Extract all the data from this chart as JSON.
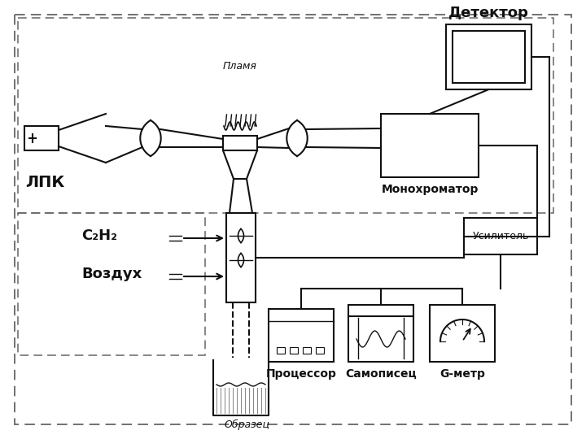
{
  "bg_color": "#ffffff",
  "dc": "#666666",
  "cc": "#111111",
  "labels": {
    "lpk": "ЛПК",
    "flame": "Пламя",
    "monochromator": "Монохроматор",
    "detector": "Детектор",
    "amplifier": "Усилитель",
    "c2h2": "C₂H₂",
    "air": "Воздух",
    "processor": "Процессор",
    "recorder": "Самописец",
    "gauss": "G-метр",
    "sample": "Образец"
  }
}
